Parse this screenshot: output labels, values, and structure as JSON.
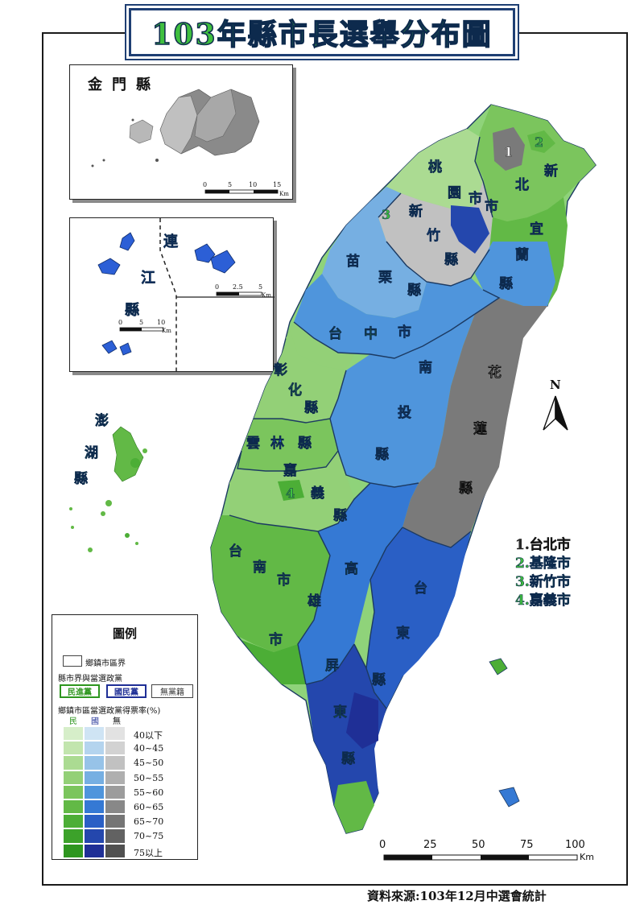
{
  "title": "103年縣市長選舉分布圖",
  "colors": {
    "dpp": "#46b035",
    "kmt": "#2c5fd6",
    "ind": "#7a7a7a",
    "border": "#1f3f73"
  },
  "insets": {
    "kinmen": {
      "name": "金門縣",
      "scale": [
        "0",
        "5",
        "10",
        "15"
      ],
      "unit": "Km"
    },
    "lienchiang": {
      "name": "連江縣",
      "scale_a": [
        "0",
        "2.5",
        "5"
      ],
      "scale_b": [
        "0",
        "5",
        "10"
      ],
      "unit": "Km"
    },
    "penghu": {
      "name": "澎湖縣"
    }
  },
  "labels": {
    "taoyuan": "桃園市",
    "new_taipei": "新北市",
    "hsinchu_county": "新竹縣",
    "yilan": "宜蘭縣",
    "miaoli": "苗栗縣",
    "taichung": "台中市",
    "changhua": "彰化縣",
    "nantou": "南投縣",
    "hualien": "花蓮縣",
    "yunlin": "雲林縣",
    "chiayi_county": "嘉義縣",
    "tainan": "台南市",
    "kaohsiung": "高雄市",
    "taitung": "台東縣",
    "pingtung": "屏東縣",
    "n1": "1",
    "n2": "2",
    "n3": "3",
    "n4": "4"
  },
  "north_arrow": "N",
  "cities": [
    {
      "label": "1.台北市",
      "color": "#2a2a2a"
    },
    {
      "label": "2.基隆市",
      "color": "#3fbf3f"
    },
    {
      "label": "3.新竹市",
      "color": "#3fbf3f"
    },
    {
      "label": "4.嘉義市",
      "color": "#3fbf3f"
    }
  ],
  "legend": {
    "title": "圖例",
    "boundary_label": "鄉鎮市區界",
    "county_label": "縣市界與當選政黨",
    "parties": [
      "民進黨",
      "國民黨",
      "無黨籍"
    ],
    "rate_label": "鄉鎮市區當選政黨得票率(%)",
    "col_heads": [
      "民",
      "國",
      "無"
    ],
    "classes": [
      "40以下",
      "40~45",
      "45~50",
      "50~55",
      "55~60",
      "60~65",
      "65~70",
      "70~75",
      "75以上"
    ],
    "dpp_ramp": [
      "#d6eec9",
      "#c2e5ae",
      "#abdb92",
      "#93d077",
      "#7bc55d",
      "#62b946",
      "#4cae36",
      "#3ca22a",
      "#2e961f"
    ],
    "kmt_ramp": [
      "#cfe4f4",
      "#b4d4ee",
      "#97c3e8",
      "#76afe2",
      "#4f95dc",
      "#3579d4",
      "#2a5fc5",
      "#2447ad",
      "#1f2f96"
    ],
    "ind_ramp": [
      "#e2e2e2",
      "#d2d2d2",
      "#c1c1c1",
      "#afafaf",
      "#9c9c9c",
      "#888888",
      "#757575",
      "#626262",
      "#505050"
    ]
  },
  "scale": {
    "ticks": [
      "0",
      "25",
      "50",
      "75",
      "100"
    ],
    "unit": "Km"
  },
  "source": "資料來源:103年12月中選會統計"
}
